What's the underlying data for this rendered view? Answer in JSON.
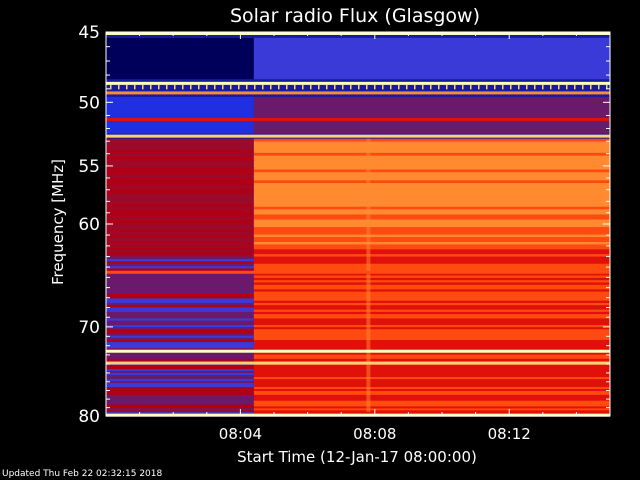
{
  "chart_data": {
    "type": "heatmap",
    "title": "Solar radio Flux (Glasgow)",
    "xlabel": "Start Time (12-Jan-17 08:00:00)",
    "ylabel": "Frequency [MHz]",
    "xlim_minutes": [
      0,
      15
    ],
    "ylim_mhz": [
      45,
      80
    ],
    "y_scale": "log",
    "y_inverted": true,
    "x_ticks": [
      {
        "minute": 4,
        "label": "08:04"
      },
      {
        "minute": 8,
        "label": "08:08"
      },
      {
        "minute": 12,
        "label": "08:12"
      }
    ],
    "y_ticks": [
      {
        "mhz": 45,
        "label": "45"
      },
      {
        "mhz": 50,
        "label": "50"
      },
      {
        "mhz": 55,
        "label": "55"
      },
      {
        "mhz": 60,
        "label": "60"
      },
      {
        "mhz": 70,
        "label": "70"
      },
      {
        "mhz": 80,
        "label": "80"
      }
    ],
    "event_start_minute": 4.4,
    "colorscale": [
      "#000033",
      "#1a1aa0",
      "#3a3ad8",
      "#6a1a6a",
      "#b00018",
      "#e0100a",
      "#ff4a10",
      "#ff8a30",
      "#ffd070",
      "#ffffc0"
    ],
    "horizontal_bands_mhz": [
      {
        "mhz": 45.1,
        "level": 0.95
      },
      {
        "mhz": 48.6,
        "level": 0.97
      },
      {
        "mhz": 49.3,
        "level": 0.8
      },
      {
        "mhz": 51.3,
        "level": 0.5
      },
      {
        "mhz": 52.6,
        "level": 0.9
      },
      {
        "mhz": 64.5,
        "level": 0.7
      },
      {
        "mhz": 72.6,
        "level": 0.95
      },
      {
        "mhz": 73.9,
        "level": 0.85
      },
      {
        "mhz": 79.9,
        "level": 0.95
      }
    ]
  },
  "footer": "Updated Thu Feb 22 02:32:15 2018"
}
